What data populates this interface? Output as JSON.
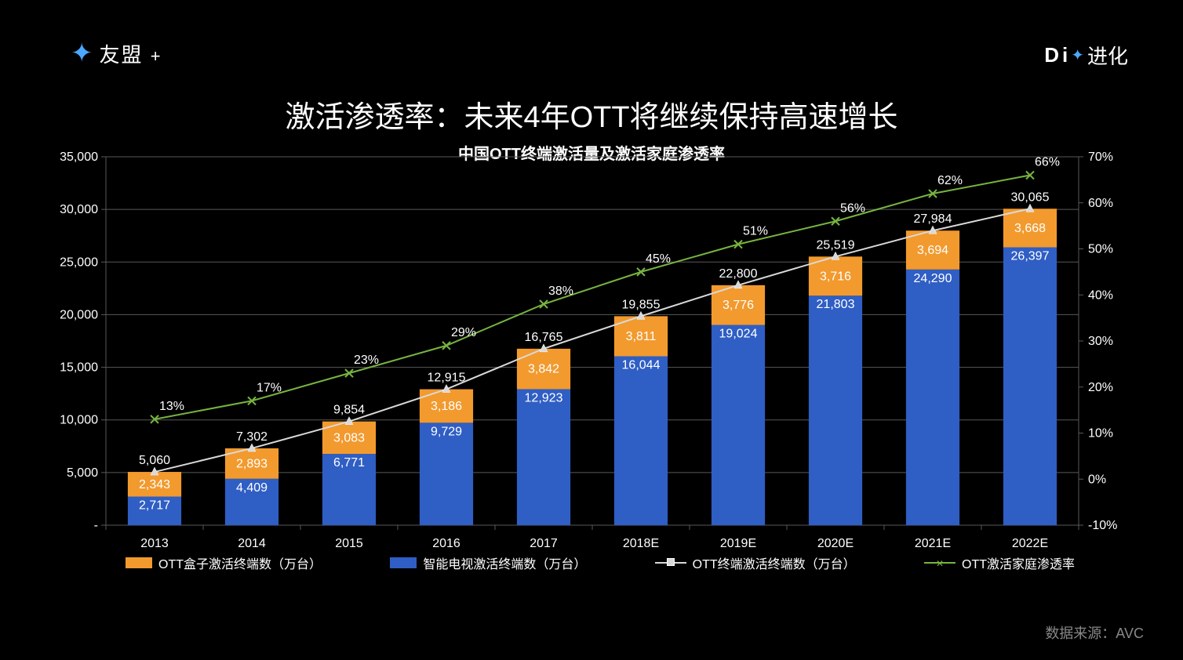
{
  "logo_left_text": "友盟",
  "logo_left_plus": "+",
  "logo_right_prefix": "D",
  "logo_right_i": "i",
  "logo_right_suffix": "进化",
  "title": "激活渗透率：未来4年OTT将继续保持高速增长",
  "subtitle": "中国OTT终端激活量及激活家庭渗透率",
  "source_label": "数据来源：AVC",
  "chart": {
    "type": "stacked-bar + dual-line (secondary axis)",
    "background": "#000000",
    "grid_color": "#595959",
    "axis_text_color": "#ffffff",
    "tick_font_size": 16,
    "bar_label_font_size": 16,
    "line_label_font_size": 16,
    "categories": [
      "2013",
      "2014",
      "2015",
      "2016",
      "2017",
      "2018E",
      "2019E",
      "2020E",
      "2021E",
      "2022E"
    ],
    "y_left": {
      "min": 0,
      "max": 35000,
      "step": 5000,
      "labels": [
        "-",
        "5,000",
        "10,000",
        "15,000",
        "20,000",
        "25,000",
        "30,000",
        "35,000"
      ]
    },
    "y_right": {
      "min": -10,
      "max": 70,
      "step": 10,
      "suffix": "%",
      "labels": [
        "-10%",
        "0%",
        "10%",
        "20%",
        "30%",
        "40%",
        "50%",
        "60%",
        "70%"
      ]
    },
    "bar_width_ratio": 0.55,
    "series_bar_bottom": {
      "name": "智能电视激活终端数（万台）",
      "color": "#2f5ec4",
      "values": [
        2717,
        4409,
        6771,
        9729,
        12923,
        16044,
        19024,
        21803,
        24290,
        26397
      ],
      "labels": [
        "2,717",
        "4,409",
        "6,771",
        "9,729",
        "12,923",
        "16,044",
        "19,024",
        "21,803",
        "24,290",
        "26,397"
      ],
      "label_color": "#ffffff"
    },
    "series_bar_top": {
      "name": "OTT盒子激活终端数（万台）",
      "color": "#f29a2e",
      "values": [
        2343,
        2893,
        3083,
        3186,
        3842,
        3811,
        3776,
        3716,
        3694,
        3668
      ],
      "labels": [
        "2,343",
        "2,893",
        "3,083",
        "3,186",
        "3,842",
        "3,811",
        "3,776",
        "3,716",
        "3,694",
        "3,668"
      ],
      "label_color": "#ffffff"
    },
    "series_line_total": {
      "name": "OTT终端激活终端数（万台）",
      "color": "#d9d9d9",
      "marker": "triangle",
      "marker_color": "#d9d9d9",
      "values": [
        5060,
        7302,
        9854,
        12915,
        16765,
        19855,
        22800,
        25519,
        27984,
        30065
      ],
      "labels": [
        "5,060",
        "7,302",
        "9,854",
        "12,915",
        "16,765",
        "19,855",
        "22,800",
        "25,519",
        "27,984",
        "30,065"
      ],
      "label_color": "#ffffff",
      "axis": "left"
    },
    "series_line_pct": {
      "name": "OTT激活家庭渗透率",
      "color": "#77b43f",
      "marker": "x",
      "marker_color": "#77b43f",
      "values": [
        13,
        17,
        23,
        29,
        38,
        45,
        51,
        56,
        62,
        66
      ],
      "labels": [
        "13%",
        "17%",
        "23%",
        "29%",
        "38%",
        "45%",
        "51%",
        "56%",
        "62%",
        "66%"
      ],
      "label_color": "#ffffff",
      "axis": "right"
    }
  },
  "legend_order": [
    "series_bar_top",
    "series_bar_bottom",
    "series_line_total",
    "series_line_pct"
  ]
}
